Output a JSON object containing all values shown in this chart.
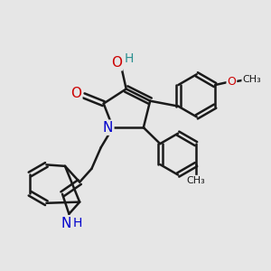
{
  "bg_color": "#e6e6e6",
  "bond_color": "#1a1a1a",
  "bond_width": 1.8,
  "atom_colors": {
    "O": "#cc0000",
    "N": "#0000cc",
    "H_OH": "#2a9090",
    "H_NH": "#0000cc",
    "C": "#1a1a1a"
  },
  "figsize": [
    3.0,
    3.0
  ],
  "dpi": 100,
  "xlim": [
    0,
    10
  ],
  "ylim": [
    0,
    10
  ]
}
